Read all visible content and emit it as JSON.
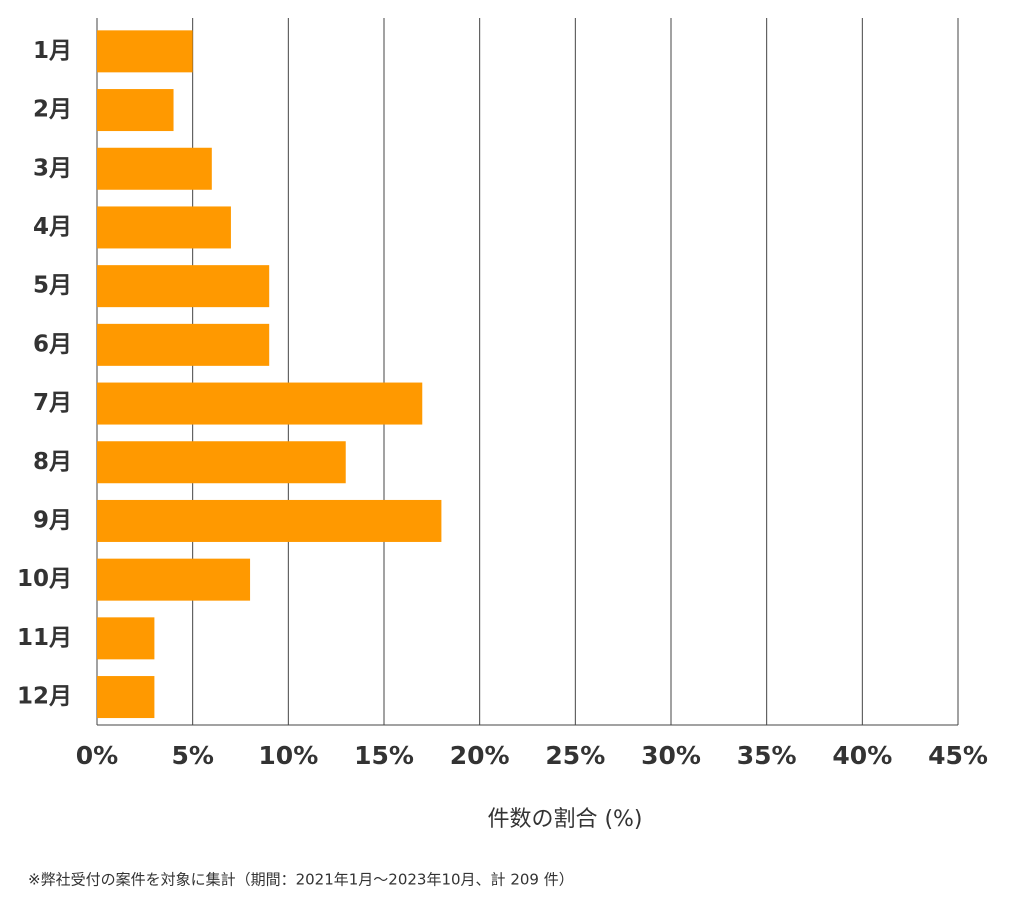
{
  "chart_data": {
    "type": "bar",
    "orientation": "horizontal",
    "categories": [
      "1月",
      "2月",
      "3月",
      "4月",
      "5月",
      "6月",
      "7月",
      "8月",
      "9月",
      "10月",
      "11月",
      "12月"
    ],
    "values": [
      5,
      4,
      6,
      7,
      9,
      9,
      17,
      13,
      18,
      8,
      3,
      3
    ],
    "color": "#ff9900",
    "xlim": [
      0,
      45
    ],
    "xticks": [
      {
        "value": 0,
        "label": "0%"
      },
      {
        "value": 5,
        "label": "5%"
      },
      {
        "value": 10,
        "label": "10%"
      },
      {
        "value": 15,
        "label": "15%"
      },
      {
        "value": 20,
        "label": "20%"
      },
      {
        "value": 25,
        "label": "25%"
      },
      {
        "value": 30,
        "label": "30%"
      },
      {
        "value": 35,
        "label": "35%"
      },
      {
        "value": 40,
        "label": "40%"
      },
      {
        "value": 45,
        "label": "45%"
      }
    ],
    "grid": true,
    "x_label": "件数の割合 (%)",
    "note": "※弊社受付の案件を対象に集計（期間：2021年1月～2023年10月、計 209 件）"
  }
}
